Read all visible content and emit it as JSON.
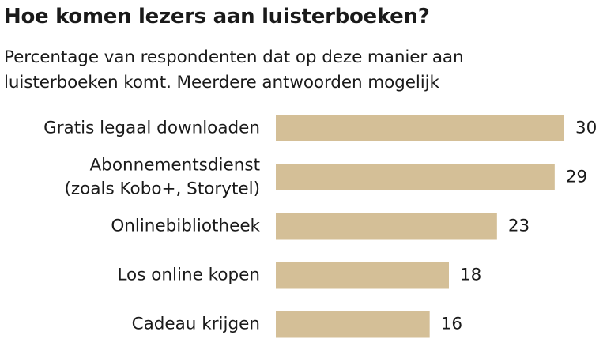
{
  "chart_data": {
    "type": "bar",
    "orientation": "horizontal",
    "title": "Hoe komen lezers aan luisterboeken?",
    "subtitle": "Percentage van respondenten dat op deze manier aan luisterboeken komt. Meerdere antwoorden mogelijk",
    "categories": [
      [
        "Gratis legaal downloaden"
      ],
      [
        "Abonnementsdienst",
        "(zoals Kobo+, Storytel)"
      ],
      [
        "Onlinebibliotheek"
      ],
      [
        "Los online kopen"
      ],
      [
        "Cadeau krijgen"
      ]
    ],
    "values": [
      30,
      29,
      23,
      18,
      16
    ],
    "xlim": [
      0,
      30
    ],
    "bar_color": "#d4bf97",
    "grid": false,
    "legend": "none"
  }
}
